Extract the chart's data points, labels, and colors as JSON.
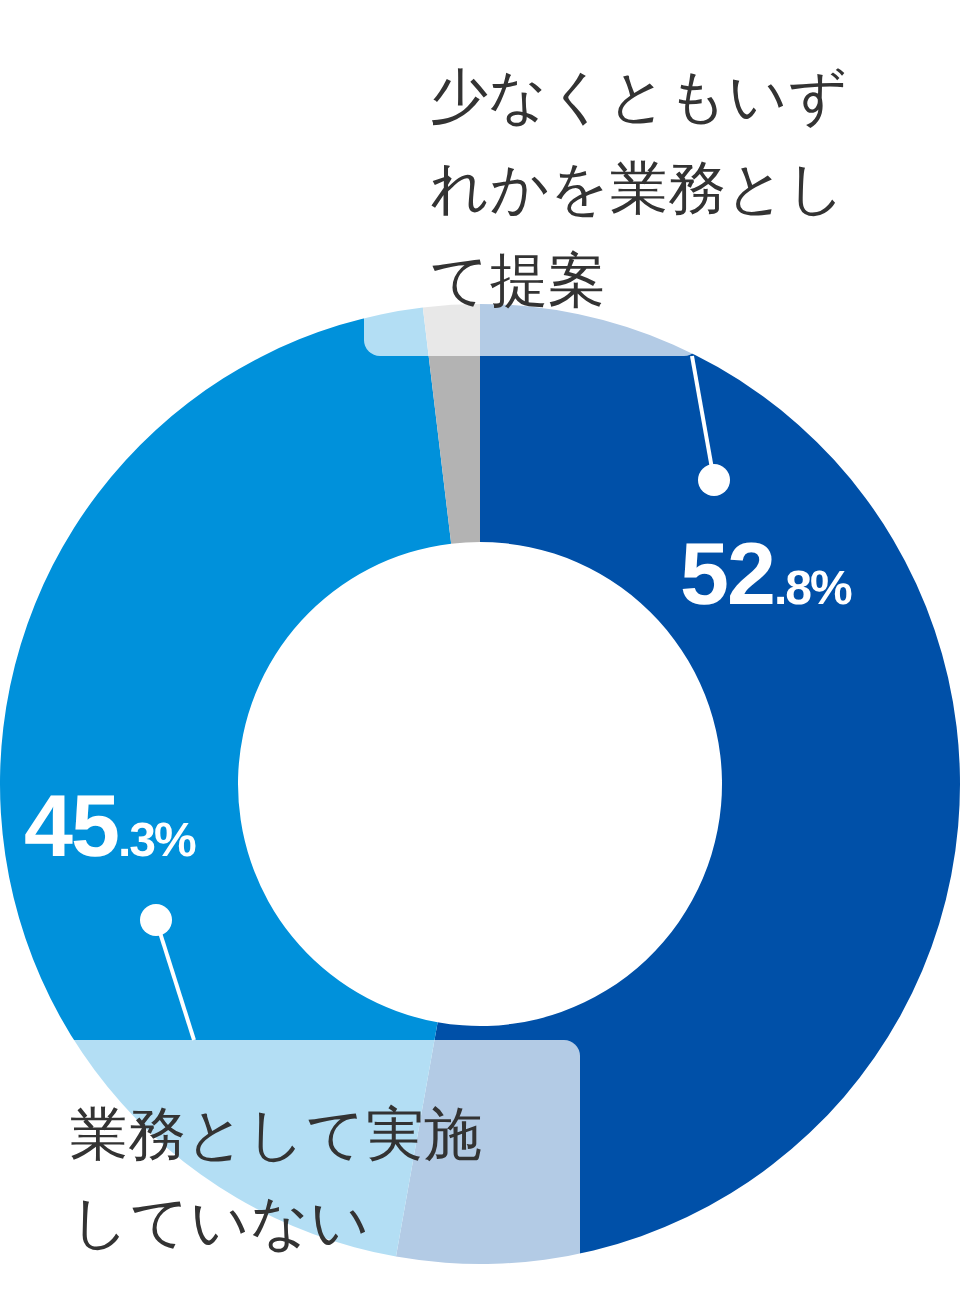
{
  "chart_data": {
    "type": "donut",
    "categories": [
      "少なくともいずれかを業務として提案",
      "業務として実施していない",
      null
    ],
    "values": [
      52.8,
      45.3,
      1.9
    ],
    "colors": [
      "#0050a8",
      "#0091db",
      "#b3b3b3"
    ],
    "value_labels": [
      "52.8%",
      "45.3%",
      null
    ]
  }
}
